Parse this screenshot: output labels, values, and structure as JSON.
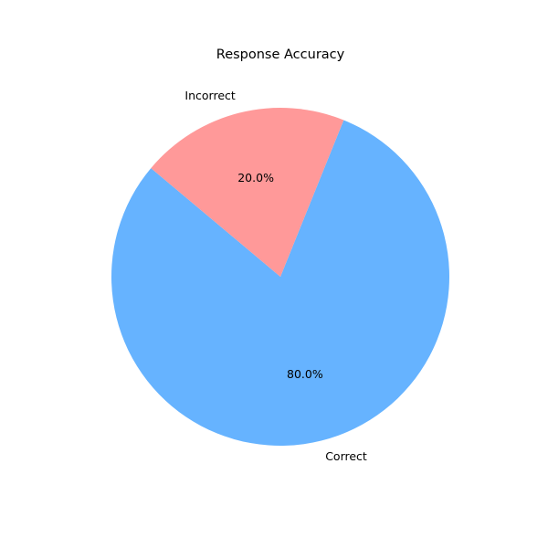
{
  "chart_data": {
    "type": "pie",
    "title": "Response Accuracy",
    "labels": [
      "Correct",
      "Incorrect"
    ],
    "values": [
      80,
      20
    ],
    "percent_labels": [
      "80.0%",
      "20.0%"
    ],
    "colors": [
      "#66b3ff",
      "#ff9999"
    ],
    "start_angle_deg": 140,
    "direction": "counterclockwise"
  }
}
